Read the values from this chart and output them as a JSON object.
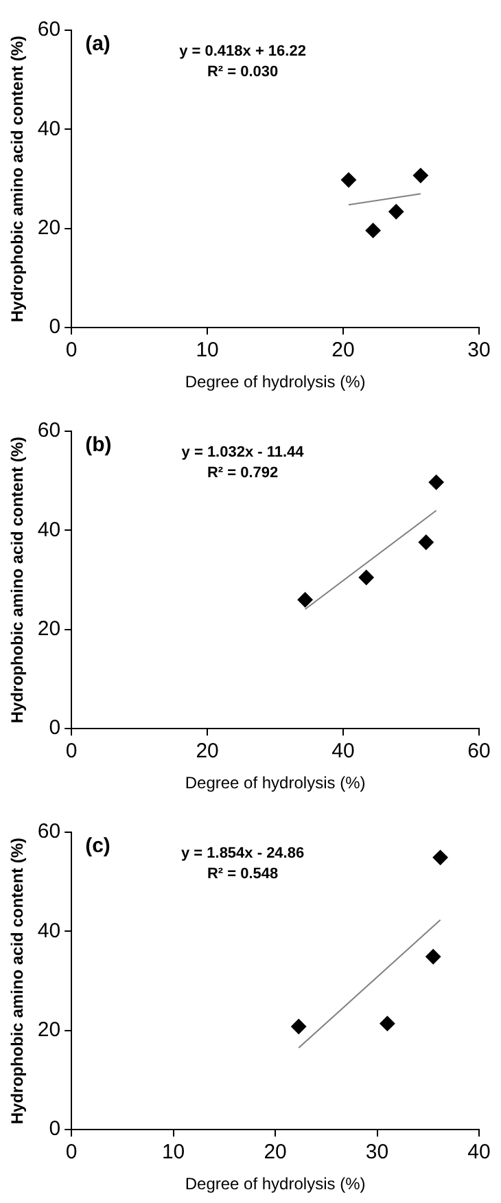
{
  "chart_data": [
    {
      "type": "scatter",
      "xlabel": "Degree of hydrolysis (%)",
      "ylabel": "Hydrophobic amino acid content (%)",
      "xlim": [
        0,
        30
      ],
      "ylim": [
        0,
        60
      ],
      "xticks": [
        0,
        10,
        20,
        30
      ],
      "yticks": [
        0,
        20,
        40,
        60
      ],
      "legend": false,
      "annotations": [
        "(a)",
        "y = 0.418x + 16.22",
        "R² = 0.030"
      ],
      "series": [
        {
          "type": "scatter",
          "marker": "diamond",
          "color": "#000000",
          "x": [
            20.4,
            22.2,
            23.9,
            25.7
          ],
          "values": [
            29.8,
            19.6,
            23.4,
            30.7
          ]
        },
        {
          "type": "line",
          "color": "#808080",
          "x": [
            20.4,
            25.7
          ],
          "values": [
            24.8,
            27.0
          ]
        }
      ]
    },
    {
      "type": "scatter",
      "xlabel": "Degree of hydrolysis (%)",
      "ylabel": "Hydrophobic amino acid content (%)",
      "xlim": [
        0,
        60
      ],
      "ylim": [
        0,
        60
      ],
      "xticks": [
        0,
        20,
        40,
        60
      ],
      "yticks": [
        0,
        20,
        40,
        60
      ],
      "legend": false,
      "annotations": [
        "(b)",
        "y = 1.032x - 11.44",
        "R² = 0.792"
      ],
      "series": [
        {
          "type": "scatter",
          "marker": "diamond",
          "color": "#000000",
          "x": [
            34.4,
            43.4,
            52.2,
            53.7
          ],
          "values": [
            26.0,
            30.5,
            37.6,
            49.7
          ]
        },
        {
          "type": "line",
          "color": "#808080",
          "x": [
            34.4,
            53.7
          ],
          "values": [
            24.1,
            44.0
          ]
        }
      ]
    },
    {
      "type": "scatter",
      "xlabel": "Degree of hydrolysis (%)",
      "ylabel": "Hydrophobic amino acid content (%)",
      "xlim": [
        0,
        40
      ],
      "ylim": [
        0,
        60
      ],
      "xticks": [
        0,
        10,
        20,
        30,
        40
      ],
      "yticks": [
        0,
        20,
        40,
        60
      ],
      "legend": false,
      "annotations": [
        "(c)",
        "y = 1.854x - 24.86",
        "R² = 0.548"
      ],
      "series": [
        {
          "type": "scatter",
          "marker": "diamond",
          "color": "#000000",
          "x": [
            22.3,
            31.0,
            35.5,
            36.2
          ],
          "values": [
            20.8,
            21.4,
            34.9,
            54.9
          ]
        },
        {
          "type": "line",
          "color": "#808080",
          "x": [
            22.3,
            36.2
          ],
          "values": [
            16.5,
            42.3
          ]
        }
      ]
    }
  ]
}
